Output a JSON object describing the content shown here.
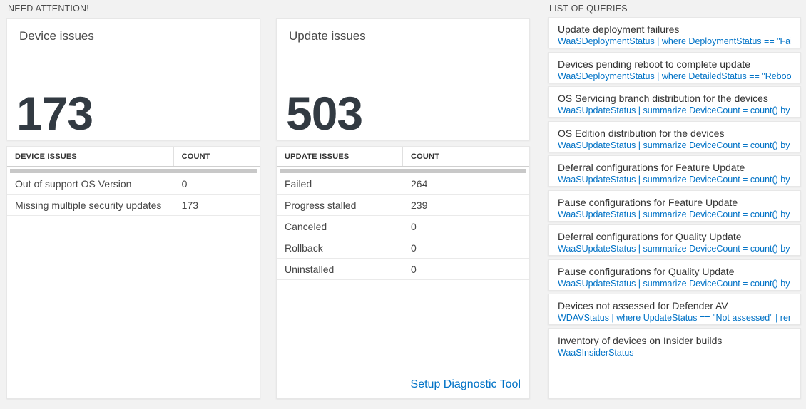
{
  "colors": {
    "page_background": "#f2f2f2",
    "accent_blue": "#0072c6",
    "number_text": "#323a42",
    "grid_bar_gray": "#c8c8c8"
  },
  "sections": {
    "need_attention": {
      "title": "NEED ATTENTION!"
    },
    "queries": {
      "title": "LIST OF QUERIES"
    }
  },
  "device_card": {
    "title": "Device issues",
    "count": "173",
    "table": {
      "headers": [
        "DEVICE ISSUES",
        "COUNT"
      ],
      "rows": [
        {
          "label": "Out of support OS Version",
          "count": "0"
        },
        {
          "label": "Missing multiple security updates",
          "count": "173"
        }
      ]
    }
  },
  "update_card": {
    "title": "Update issues",
    "count": "503",
    "table": {
      "headers": [
        "UPDATE ISSUES",
        "COUNT"
      ],
      "rows": [
        {
          "label": "Failed",
          "count": "264"
        },
        {
          "label": "Progress stalled",
          "count": "239"
        },
        {
          "label": "Canceled",
          "count": "0"
        },
        {
          "label": "Rollback",
          "count": "0"
        },
        {
          "label": "Uninstalled",
          "count": "0"
        }
      ]
    },
    "link": "Setup Diagnostic Tool"
  },
  "query_list": {
    "items": [
      {
        "title": "Update deployment failures",
        "query": "WaaSDeploymentStatus | where DeploymentStatus == \"Failed\" |..."
      },
      {
        "title": "Devices pending reboot to complete update",
        "query": "WaaSDeploymentStatus | where DetailedStatus == \"Reboot pend..."
      },
      {
        "title": "OS Servicing branch distribution for the devices",
        "query": "WaaSUpdateStatus | summarize DeviceCount = count() by OSSer..."
      },
      {
        "title": "OS Edition distribution for the devices",
        "query": "WaaSUpdateStatus | summarize DeviceCount = count() by OSEdit..."
      },
      {
        "title": "Deferral configurations for Feature Update",
        "query": "WaaSUpdateStatus | summarize DeviceCount = count() by Featur..."
      },
      {
        "title": "Pause configurations for Feature Update",
        "query": "WaaSUpdateStatus | summarize DeviceCount = count() by Featur..."
      },
      {
        "title": "Deferral configurations for Quality Update",
        "query": "WaaSUpdateStatus | summarize DeviceCount = count() by Qualit..."
      },
      {
        "title": "Pause configurations for Quality Update",
        "query": "WaaSUpdateStatus | summarize DeviceCount = count() by Qualit..."
      },
      {
        "title": "Devices not assessed for Defender AV",
        "query": "WDAVStatus | where UpdateStatus == \"Not assessed\" | render ta..."
      },
      {
        "title": "Inventory of devices on Insider builds",
        "query": "WaaSInsiderStatus"
      }
    ]
  }
}
